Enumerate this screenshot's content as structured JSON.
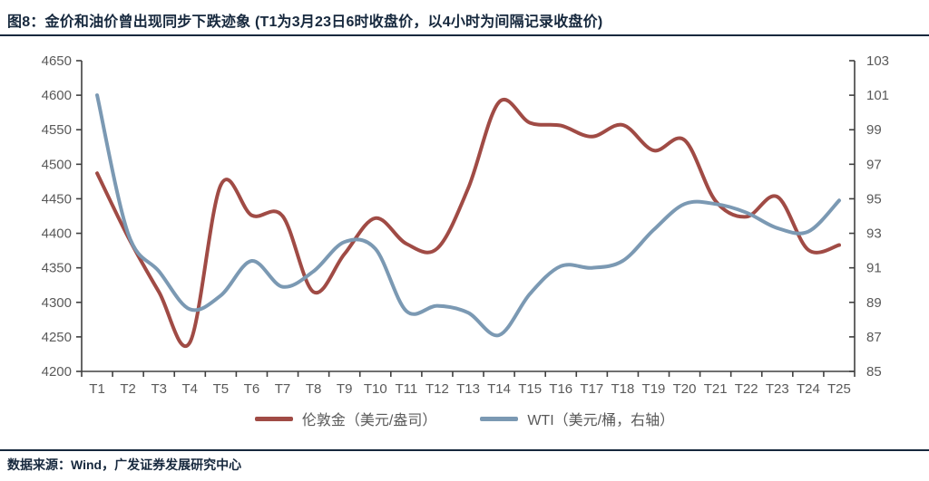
{
  "title": "图8：金价和油价曾出现同步下跌迹象 (T1为3月23日6时收盘价，以4小时为间隔记录收盘价)",
  "footer": {
    "source": "数据来源：Wind，广发证券发展研究中心"
  },
  "colors": {
    "gold": "#A04B45",
    "wti": "#7B99B3",
    "heading": "#16283D",
    "rule": "#16283D",
    "axis_text": "#595959",
    "axis_line": "#404040"
  },
  "chart_data": {
    "type": "line",
    "smooth": true,
    "grid": false,
    "legend_position": "bottom",
    "categories": [
      "T1",
      "T2",
      "T3",
      "T4",
      "T5",
      "T6",
      "T7",
      "T8",
      "T9",
      "T10",
      "T11",
      "T12",
      "T13",
      "T14",
      "T15",
      "T16",
      "T17",
      "T18",
      "T19",
      "T20",
      "T21",
      "T22",
      "T23",
      "T24",
      "T25"
    ],
    "series": [
      {
        "name": "伦敦金（美元/盎司）",
        "axis": "left",
        "color_key": "gold",
        "values": [
          4487,
          4395,
          4315,
          4242,
          4470,
          4426,
          4425,
          4315,
          4370,
          4422,
          4385,
          4378,
          4465,
          4590,
          4560,
          4556,
          4540,
          4557,
          4520,
          4535,
          4447,
          4424,
          4453,
          4376,
          4383
        ]
      },
      {
        "name": "WTI（美元/桶，右轴）",
        "axis": "right",
        "color_key": "wti",
        "values": [
          101.0,
          93.0,
          90.8,
          88.6,
          89.4,
          91.4,
          89.9,
          90.8,
          92.5,
          92.1,
          88.5,
          88.8,
          88.4,
          87.1,
          89.5,
          91.1,
          91.0,
          91.4,
          93.2,
          94.7,
          94.7,
          94.2,
          93.3,
          93.1,
          94.9
        ]
      }
    ],
    "left_axis": {
      "min": 4200,
      "max": 4650,
      "step": 50,
      "ticks": [
        4650,
        4600,
        4550,
        4500,
        4450,
        4400,
        4350,
        4300,
        4250,
        4200
      ]
    },
    "right_axis": {
      "min": 85,
      "max": 103,
      "step": 2,
      "ticks": [
        103,
        101,
        99,
        97,
        95,
        93,
        91,
        89,
        87,
        85
      ]
    }
  }
}
